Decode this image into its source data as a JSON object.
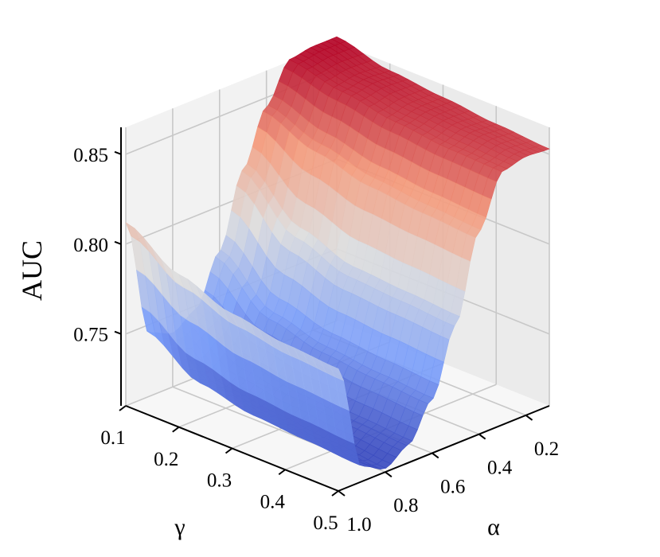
{
  "chart_data": {
    "type": "surface3d",
    "title": "",
    "xlabel": "α",
    "ylabel": "γ",
    "zlabel": "AUC",
    "alpha_ticks": [
      "0.2",
      "0.4",
      "0.6",
      "0.8",
      "1.0"
    ],
    "gamma_ticks": [
      "0.1",
      "0.2",
      "0.3",
      "0.4",
      "0.5"
    ],
    "auc_ticks": [
      "0.75",
      "0.80",
      "0.85"
    ],
    "alpha_range": [
      0.1,
      1.0
    ],
    "gamma_range": [
      0.1,
      0.5
    ],
    "auc_range": [
      0.71,
      0.865
    ],
    "colormap": "coolwarm",
    "grid": true,
    "alpha_values": [
      0.1,
      0.2,
      0.3,
      0.4,
      0.5,
      0.6,
      0.7,
      0.8,
      0.9,
      1.0
    ],
    "gamma_values": [
      0.1,
      0.2,
      0.3,
      0.4,
      0.5
    ],
    "auc_grid": [
      [
        0.868,
        0.868,
        0.866,
        0.845,
        0.815,
        0.775,
        0.748,
        0.74,
        0.745,
        0.812
      ],
      [
        0.861,
        0.862,
        0.86,
        0.835,
        0.79,
        0.752,
        0.73,
        0.722,
        0.728,
        0.795
      ],
      [
        0.858,
        0.858,
        0.855,
        0.828,
        0.78,
        0.745,
        0.725,
        0.718,
        0.722,
        0.785
      ],
      [
        0.855,
        0.856,
        0.852,
        0.825,
        0.778,
        0.742,
        0.722,
        0.715,
        0.72,
        0.78
      ],
      [
        0.853,
        0.854,
        0.851,
        0.823,
        0.776,
        0.74,
        0.72,
        0.712,
        0.718,
        0.778
      ]
    ]
  }
}
